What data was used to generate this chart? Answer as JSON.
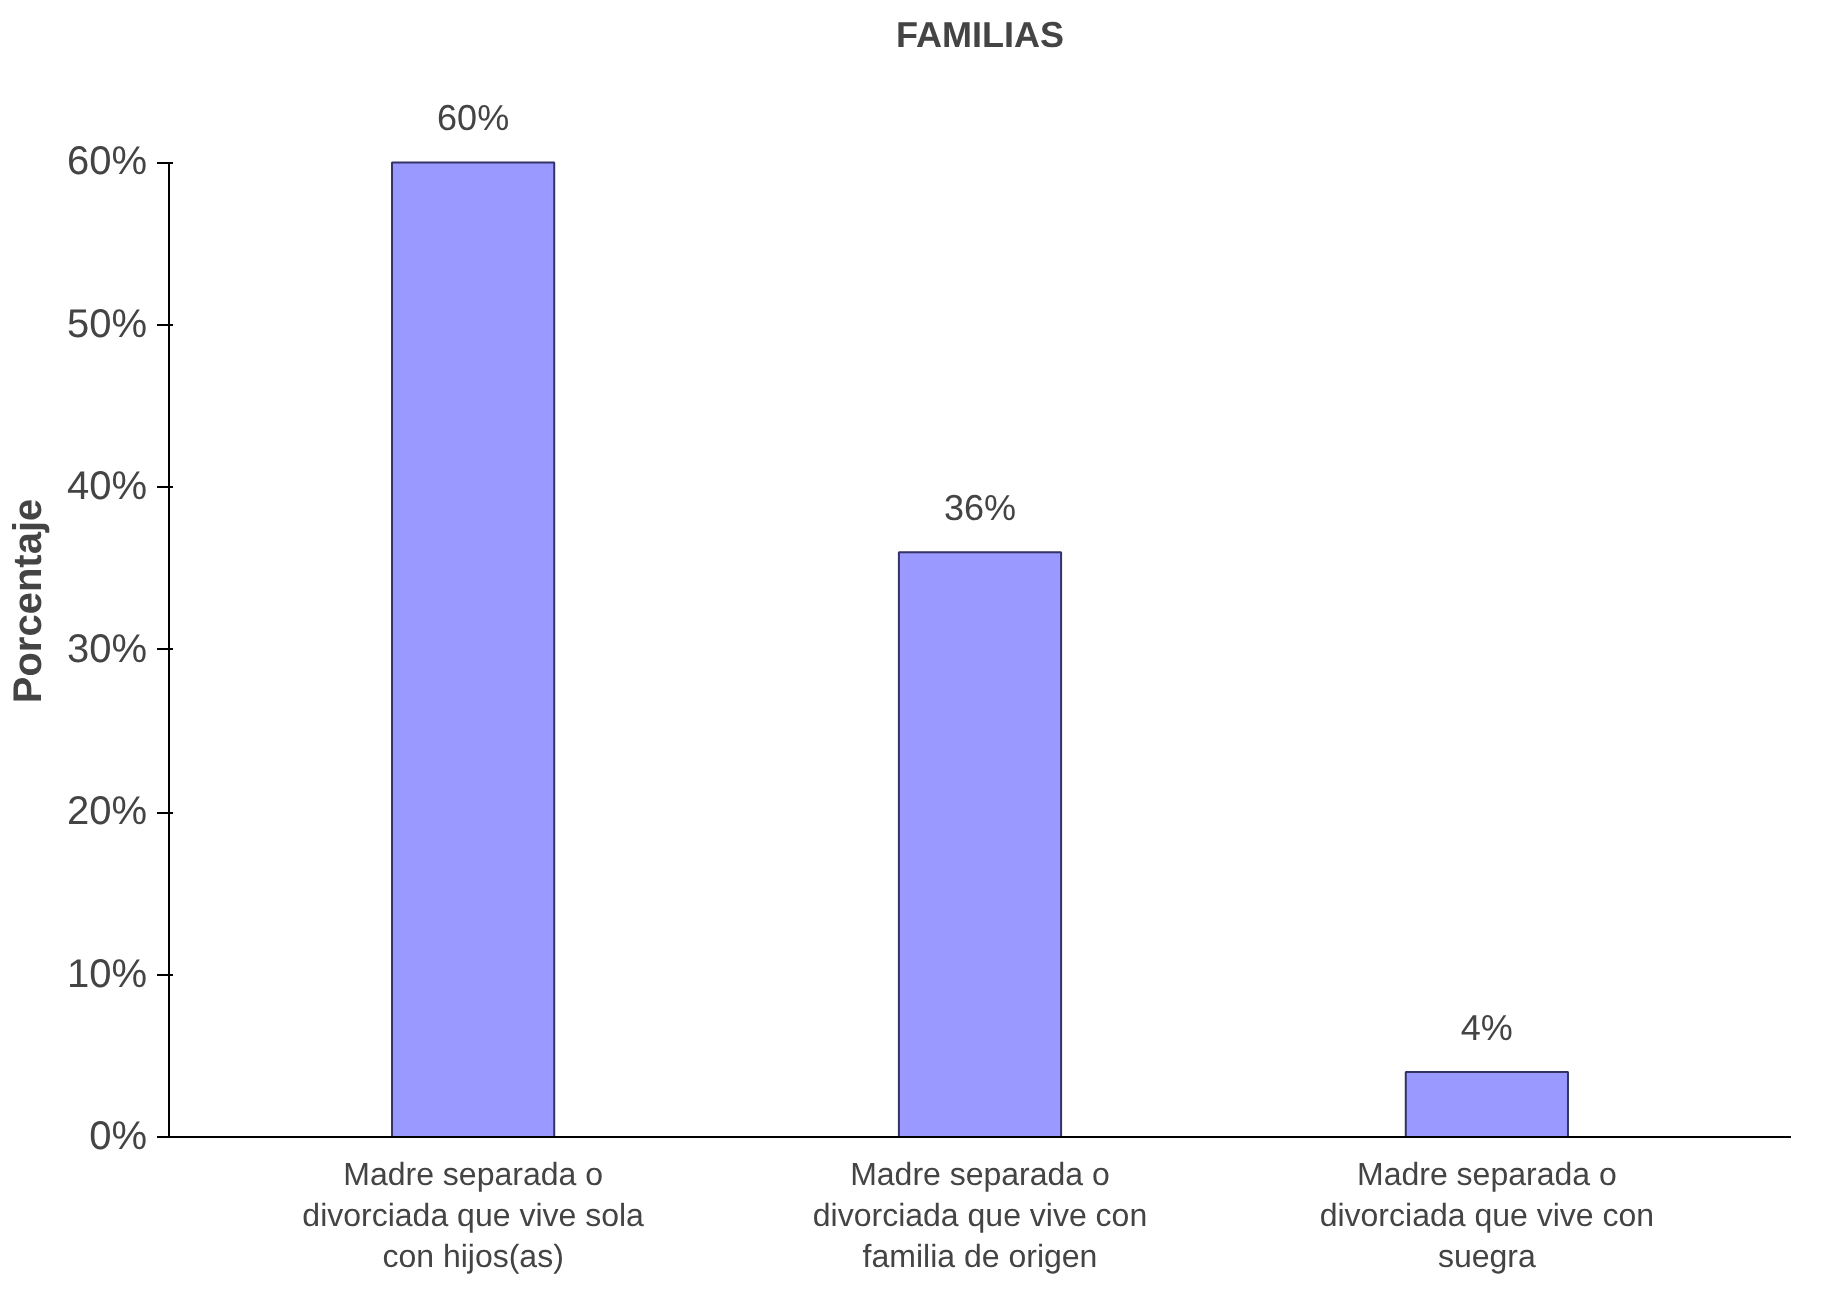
{
  "chart_data": {
    "type": "bar",
    "title": "FAMILIAS",
    "ylabel": "Porcentaje",
    "categories": [
      "Madre separada o divorciada que vive sola con hijos(as)",
      "Madre separada o divorciada que vive con familia de origen",
      "Madre separada o divorciada que vive con suegra"
    ],
    "values": [
      60,
      36,
      4
    ],
    "value_labels": [
      "60%",
      "36%",
      "4%"
    ],
    "color": "#9999ff",
    "ylim": [
      0,
      60
    ],
    "yticks": [
      {
        "value": 0,
        "label": "0%"
      },
      {
        "value": 10,
        "label": "10%"
      },
      {
        "value": 20,
        "label": "20%"
      },
      {
        "value": 30,
        "label": "30%"
      },
      {
        "value": 40,
        "label": "40%"
      },
      {
        "value": 50,
        "label": "50%"
      },
      {
        "value": 60,
        "label": "60%"
      }
    ],
    "grid": false
  }
}
